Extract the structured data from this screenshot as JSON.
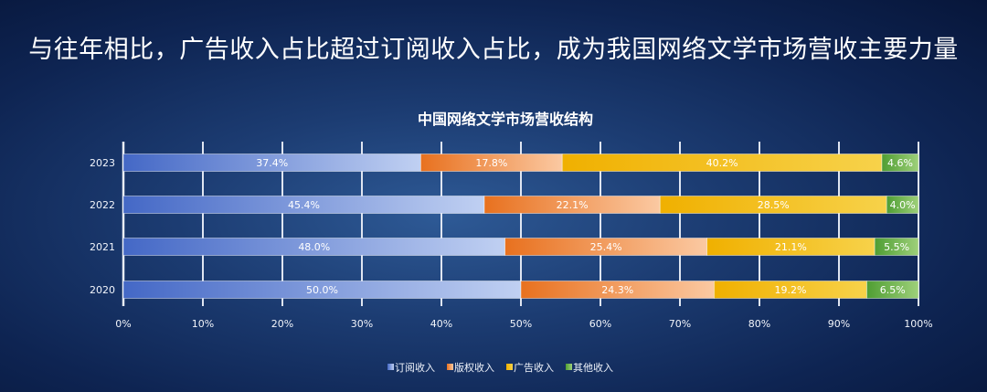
{
  "headline": "与往年相比，广告收入占比超过订阅收入占比，成为我国网络文学市场营收主要力量",
  "chart_data": {
    "type": "bar",
    "orientation": "horizontal",
    "stacked": "percent",
    "title": "中国网络文学市场营收结构",
    "categories": [
      "2023",
      "2022",
      "2021",
      "2020"
    ],
    "series": [
      {
        "name": "订阅收入",
        "values": [
          37.4,
          45.4,
          48.0,
          50.0
        ],
        "labels": [
          "37.4%",
          "45.4%",
          "48.0%",
          "50.0%"
        ],
        "color": "#4a72cc"
      },
      {
        "name": "版权收入",
        "values": [
          17.8,
          22.1,
          25.4,
          24.3
        ],
        "labels": [
          "17.8%",
          "22.1%",
          "25.4%",
          "24.3%"
        ],
        "color": "#ed7d31"
      },
      {
        "name": "广告收入",
        "values": [
          40.2,
          28.5,
          21.1,
          19.2
        ],
        "labels": [
          "40.2%",
          "28.5%",
          "21.1%",
          "19.2%"
        ],
        "color": "#f2b705"
      },
      {
        "name": "其他收入",
        "values": [
          4.6,
          4.0,
          5.5,
          6.5
        ],
        "labels": [
          "4.6%",
          "4.0%",
          "5.5%",
          "6.5%"
        ],
        "color": "#5aab3c"
      }
    ],
    "x_ticks": [
      "0%",
      "10%",
      "20%",
      "30%",
      "40%",
      "50%",
      "60%",
      "70%",
      "80%",
      "90%",
      "100%"
    ],
    "xlim": [
      0,
      100
    ],
    "grid": true,
    "legend_position": "bottom"
  }
}
